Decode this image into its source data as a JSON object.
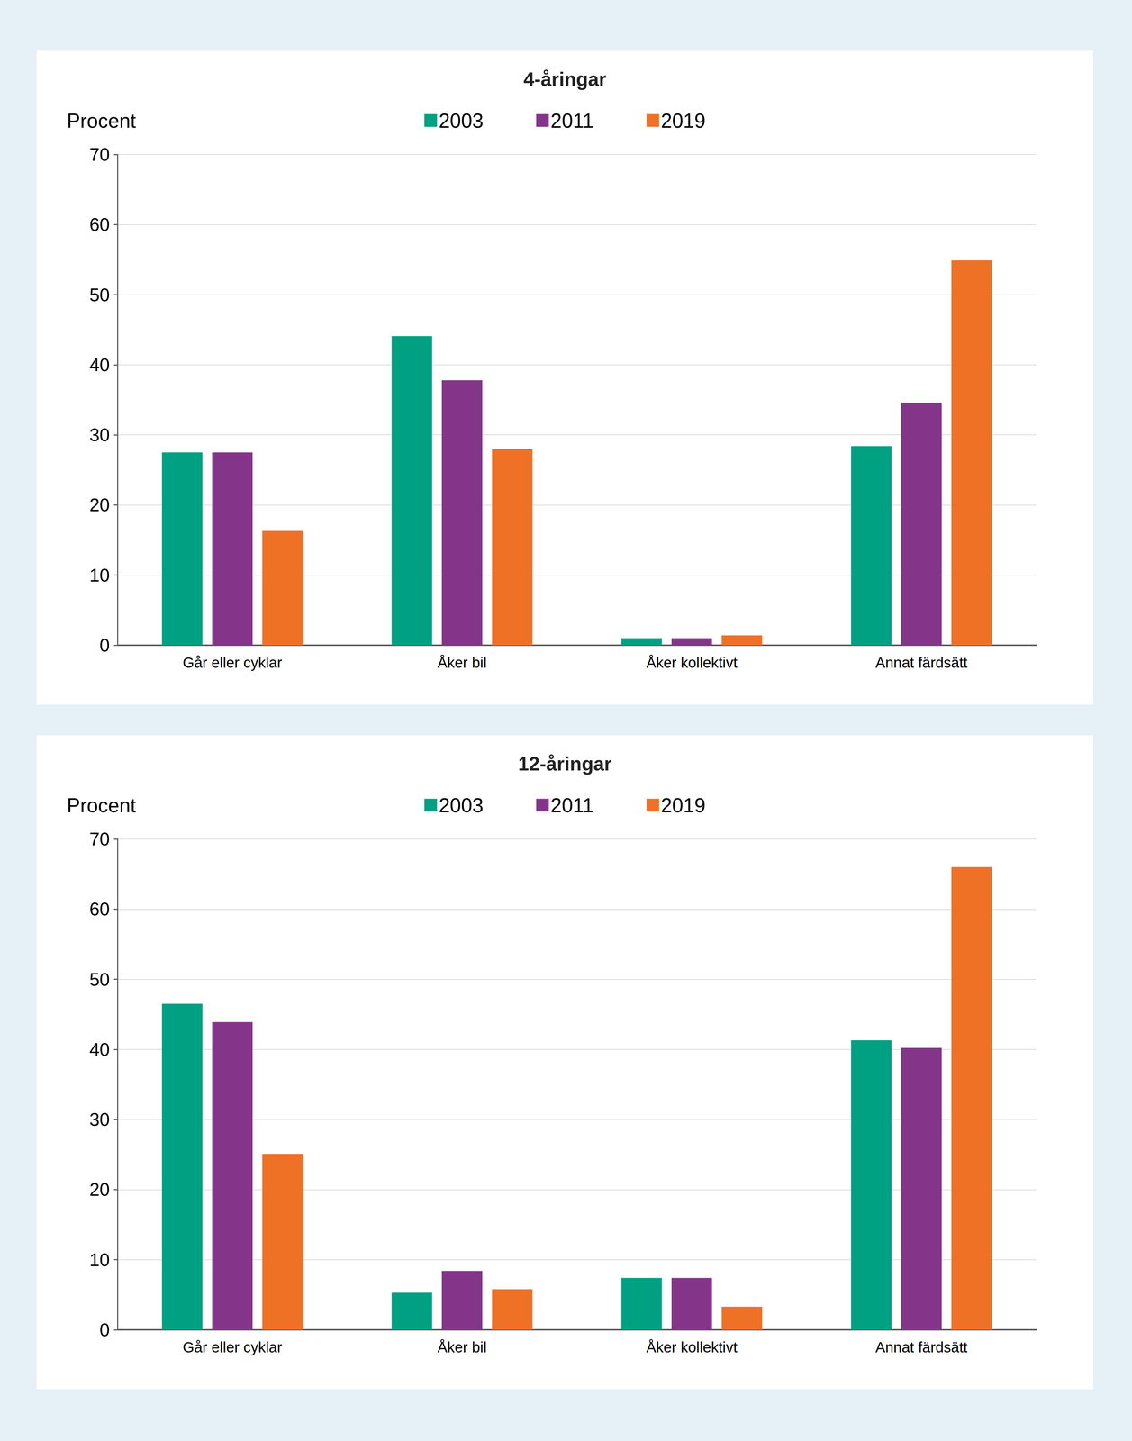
{
  "chart_data": [
    {
      "type": "bar",
      "title": "4-åringar",
      "y_label": "Procent",
      "categories": [
        "Går eller cyklar",
        "Åker bil",
        "Åker kollektivt",
        "Annat färdsätt"
      ],
      "series": [
        {
          "name": "2003",
          "color": "#00a082",
          "values": [
            27.5,
            44.1,
            1.0,
            28.4
          ]
        },
        {
          "name": "2011",
          "color": "#84358a",
          "values": [
            27.5,
            37.8,
            1.0,
            34.6
          ]
        },
        {
          "name": "2019",
          "color": "#ef7126",
          "values": [
            16.3,
            28.0,
            1.4,
            54.9
          ]
        }
      ],
      "ylim": [
        0,
        70
      ],
      "yticks": [
        0,
        10,
        20,
        30,
        40,
        50,
        60,
        70
      ],
      "grid": true,
      "legend": "top"
    },
    {
      "type": "bar",
      "title": "12-åringar",
      "y_label": "Procent",
      "categories": [
        "Går eller cyklar",
        "Åker bil",
        "Åker kollektivt",
        "Annat färdsätt"
      ],
      "series": [
        {
          "name": "2003",
          "color": "#00a082",
          "values": [
            46.5,
            5.3,
            7.4,
            41.3
          ]
        },
        {
          "name": "2011",
          "color": "#84358a",
          "values": [
            43.9,
            8.4,
            7.4,
            40.2
          ]
        },
        {
          "name": "2019",
          "color": "#ef7126",
          "values": [
            25.1,
            5.8,
            3.3,
            66.0
          ]
        }
      ],
      "ylim": [
        0,
        70
      ],
      "yticks": [
        0,
        10,
        20,
        30,
        40,
        50,
        60,
        70
      ],
      "grid": true,
      "legend": "top"
    }
  ]
}
